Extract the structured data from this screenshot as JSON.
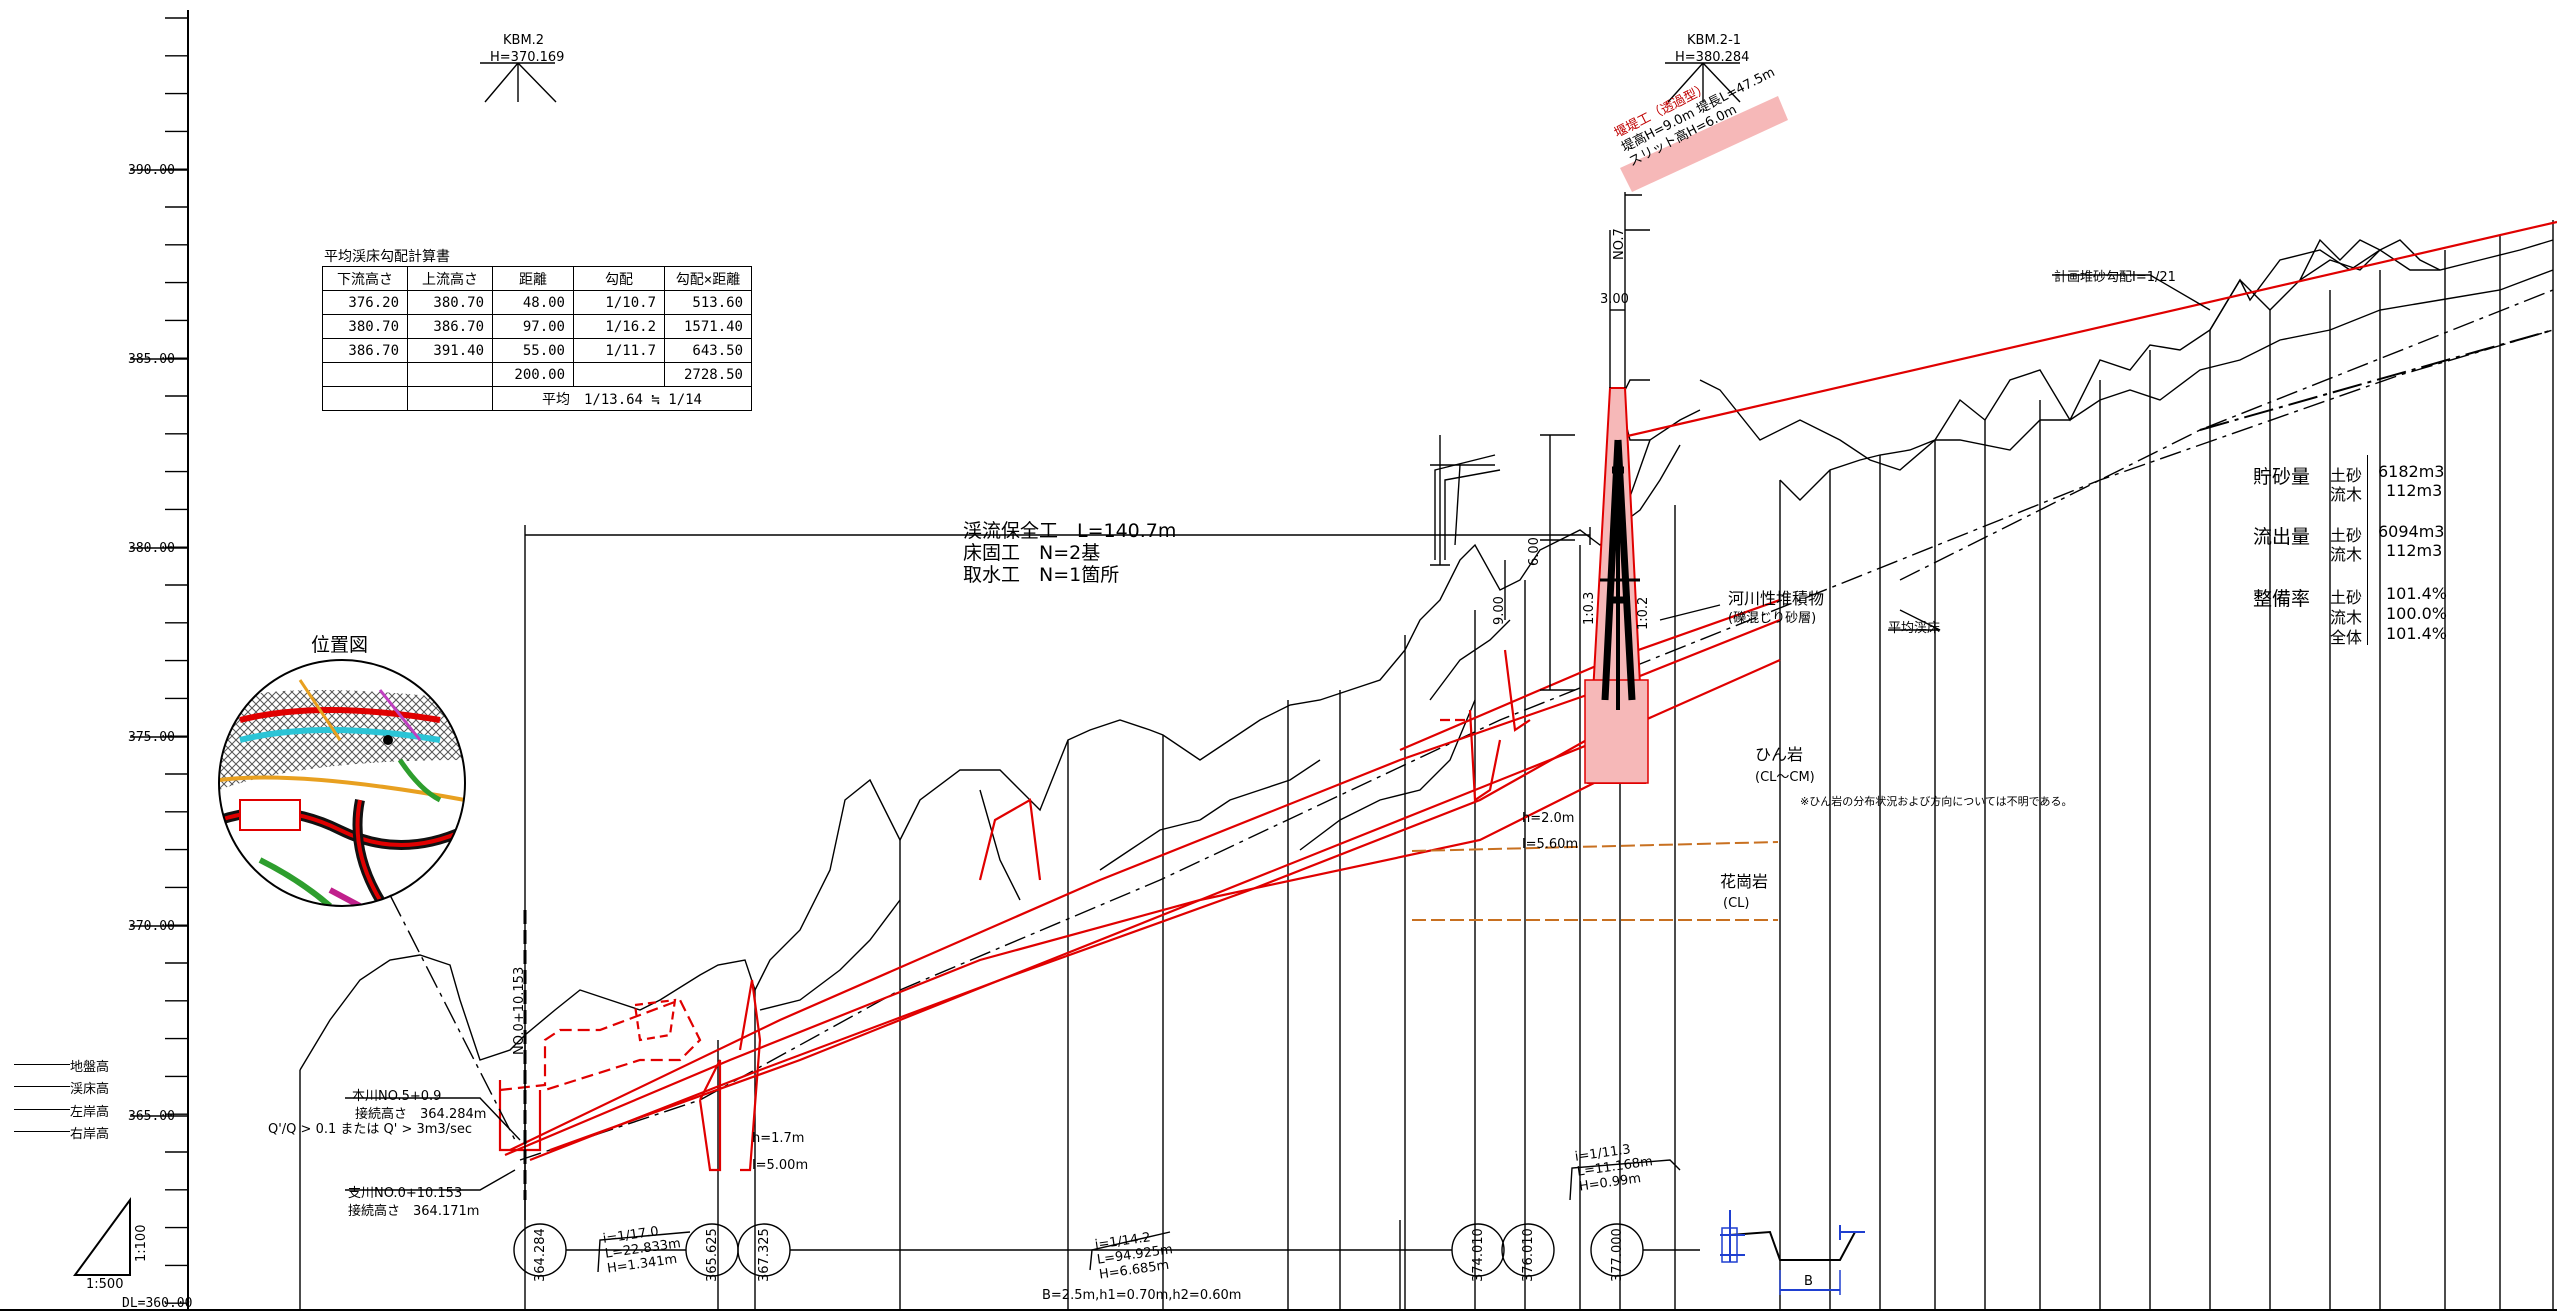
{
  "elevation_axis": {
    "labels": [
      "390.00",
      "385.00",
      "380.00",
      "375.00",
      "370.00",
      "365.00",
      "DL=360.00"
    ]
  },
  "benchmarks": [
    {
      "name": "KBM.2",
      "height": "H=370.169"
    },
    {
      "name": "KBM.2-1",
      "height": "H=380.284"
    }
  ],
  "calc_table": {
    "title": "平均渓床勾配計算書",
    "headers": [
      "下流高さ",
      "上流高さ",
      "距離",
      "勾配",
      "勾配×距離"
    ],
    "rows": [
      [
        "376.20",
        "380.70",
        "48.00",
        "1/10.7",
        "513.60"
      ],
      [
        "380.70",
        "386.70",
        "97.00",
        "1/16.2",
        "1571.40"
      ],
      [
        "386.70",
        "391.40",
        "55.00",
        "1/11.7",
        "643.50"
      ],
      [
        "",
        "",
        "200.00",
        "",
        "2728.50"
      ]
    ],
    "average": "平均　1/13.64 ≒ 1/14"
  },
  "summary_block": {
    "line1": "渓流保全工　L=140.7m",
    "line2": "床固工　N=2基",
    "line3": "取水工　N=1箇所"
  },
  "location_map": {
    "title": "位置図"
  },
  "stats": {
    "storage_label": "貯砂量",
    "storage": [
      {
        "k": "土砂",
        "v": "6182m3"
      },
      {
        "k": "流木",
        "v": "112m3"
      }
    ],
    "outflow_label": "流出量",
    "outflow": [
      {
        "k": "土砂",
        "v": "6094m3"
      },
      {
        "k": "流木",
        "v": "112m3"
      }
    ],
    "rate_label": "整備率",
    "rate": [
      {
        "k": "土砂",
        "v": "101.4%"
      },
      {
        "k": "流木",
        "v": "100.0%"
      },
      {
        "k": "全体",
        "v": "101.4%"
      }
    ]
  },
  "annotations": {
    "dam_label": [
      "堰堤工（透過型）",
      "堤高H=9.0m 堤長L=47.5m",
      "スリット高H=6.0m"
    ],
    "plan_slope": "計画堆砂勾配I=1/21",
    "river_deposit": "河川性堆積物",
    "river_deposit_sub": "(礫混じり砂層)",
    "avg_bed": "平均渓床",
    "andesite": "ひん岩",
    "andesite_grade": "(CL～CM)",
    "rock_note": "※ひん岩の分布状況および方向については不明である。",
    "granite": "花崗岩",
    "granite_grade": "(CL)",
    "no7": "NO.7",
    "dim_300": "3.00",
    "dim_600": "6.00",
    "dim_900": "9.00",
    "slope_left": "1:0.3",
    "slope_right": "1:0.2",
    "h20": "h=2.0m",
    "l560": "l=5.60m",
    "h17": "h=1.7m",
    "l500": "l=5.00m",
    "no0": "NO.0+10.153",
    "honsen": "本川NO.5+0.9",
    "conn1": "接続高さ　364.284m",
    "qq": "Q'/Q > 0.1 または Q' > 3m3/sec",
    "shisen": "支川NO.0+10.153",
    "conn2": "接続高さ　364.171m",
    "grad1": [
      "i=1/17.0",
      "L=22.833m",
      "H=1.341m"
    ],
    "grad2": [
      "i=1/14.2",
      "L=94.925m",
      "H=6.685m"
    ],
    "grad3": [
      "i=1/11.3",
      "L=11.168m",
      "H=0.99m"
    ],
    "section_dims": "B=2.5m,h1=0.70m,h2=0.60m",
    "b_label": "B",
    "scale_h": "1:500",
    "scale_v": "1:100",
    "circles": [
      "364.284",
      "365.625",
      "367.325",
      "374.010",
      "376.010",
      "377.000"
    ]
  },
  "legend": [
    "地盤高",
    "渓床高",
    "左岸高",
    "右岸高"
  ],
  "colors": {
    "design": "#e00000",
    "geology": "#c87020",
    "dam_fill": "#f6b8b8",
    "section": "#1f3fd0"
  }
}
